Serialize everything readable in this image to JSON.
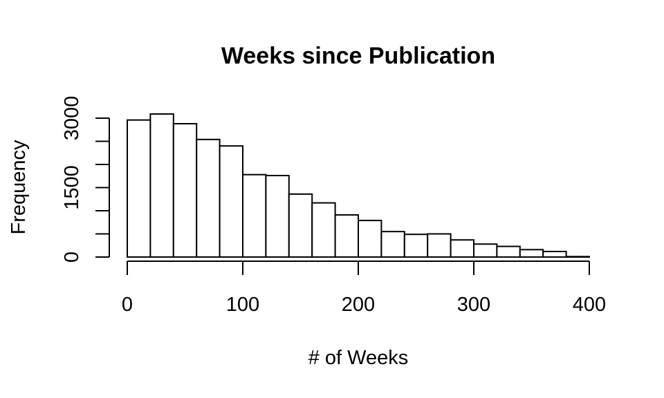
{
  "chart_data": {
    "type": "bar",
    "title": "Weeks since Publication",
    "xlabel": "# of Weeks",
    "ylabel": "Frequency",
    "bin_edges": [
      0,
      20,
      40,
      60,
      80,
      100,
      120,
      140,
      160,
      180,
      200,
      220,
      240,
      260,
      280,
      300,
      320,
      340,
      360,
      380,
      400
    ],
    "values": [
      2960,
      3090,
      2880,
      2540,
      2400,
      1780,
      1760,
      1360,
      1170,
      910,
      790,
      550,
      490,
      500,
      370,
      280,
      230,
      160,
      120,
      10
    ],
    "xlim": [
      0,
      400
    ],
    "ylim": [
      0,
      3000
    ],
    "x_ticks": [
      "0",
      "100",
      "200",
      "300",
      "400"
    ],
    "y_ticks": [
      "0",
      "1500",
      "3000"
    ],
    "grid": false
  }
}
